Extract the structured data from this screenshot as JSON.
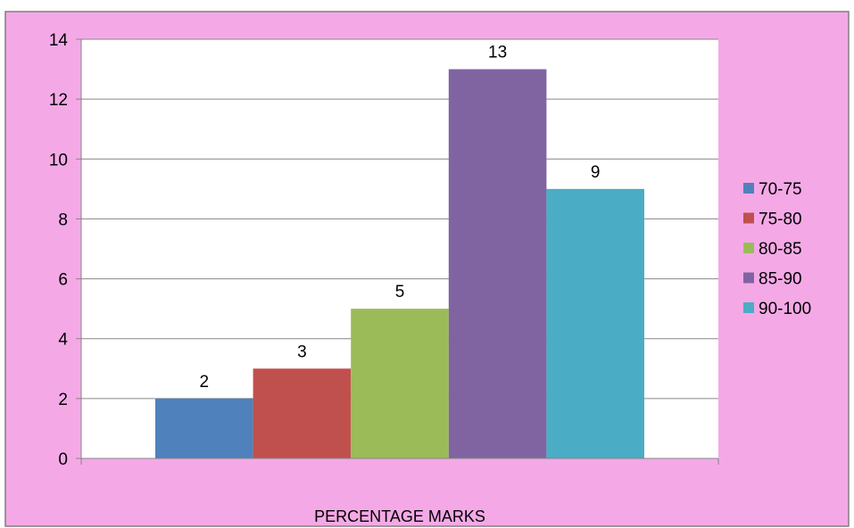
{
  "chart_data": {
    "type": "bar",
    "title": "",
    "xlabel": "PERCENTAGE MARKS",
    "ylabel": "",
    "ylim": [
      0,
      14
    ],
    "yticks": [
      0,
      2,
      4,
      6,
      8,
      10,
      12,
      14
    ],
    "grid": true,
    "legend_position": "right",
    "plot_background": "#ffffff",
    "chart_background": "#f4a9e6",
    "series": [
      {
        "name": "70-75",
        "value": 2,
        "color": "#4f81bd"
      },
      {
        "name": "75-80",
        "value": 3,
        "color": "#c0504d"
      },
      {
        "name": "80-85",
        "value": 5,
        "color": "#9bbb59"
      },
      {
        "name": "85-90",
        "value": 13,
        "color": "#8064a2"
      },
      {
        "name": "90-100",
        "value": 9,
        "color": "#4bacc6"
      }
    ]
  }
}
